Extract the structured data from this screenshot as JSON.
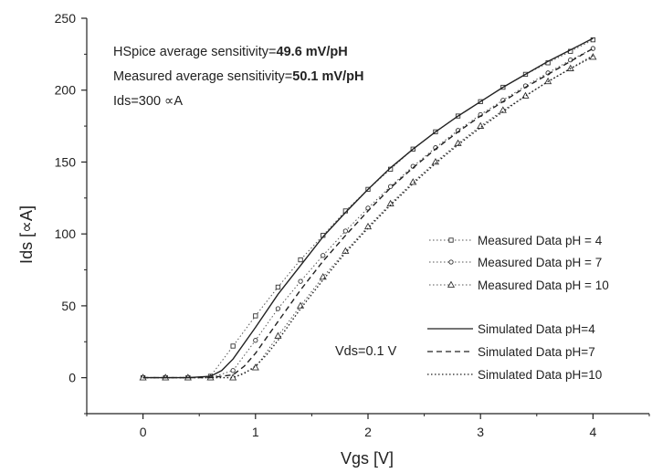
{
  "chart_data": {
    "type": "line",
    "xlabel": "Vgs [V]",
    "ylabel": "Ids [∝A]",
    "xlim": [
      -0.5,
      4.5
    ],
    "ylim": [
      -25,
      250
    ],
    "x_ticks": [
      0,
      1,
      2,
      3,
      4
    ],
    "y_ticks": [
      0,
      50,
      100,
      150,
      200,
      250
    ],
    "grid": false,
    "legend_position": "right",
    "annotations": {
      "hspice_label": "HSpice average sensitivity=",
      "hspice_value": "49.6 mV/pH",
      "measured_label": "Measured average sensitivity=",
      "measured_value": "50.1 mV/pH",
      "ids_note": "Ids=300 ∝A",
      "vds_note": "Vds=0.1 V"
    },
    "series": [
      {
        "name": "Measured Data pH = 4",
        "kind": "measured",
        "marker": "square",
        "dash": "dotted",
        "x": [
          0,
          0.2,
          0.4,
          0.6,
          0.8,
          1.0,
          1.2,
          1.4,
          1.6,
          1.8,
          2.0,
          2.2,
          2.4,
          2.6,
          2.8,
          3.0,
          3.2,
          3.4,
          3.6,
          3.8,
          4.0
        ],
        "y": [
          0,
          0,
          0,
          1,
          22,
          43,
          63,
          82,
          99,
          116,
          131,
          145,
          159,
          171,
          182,
          192,
          202,
          211,
          219,
          227,
          235
        ]
      },
      {
        "name": "Measured Data pH = 7",
        "kind": "measured",
        "marker": "circle",
        "dash": "dotted",
        "x": [
          0,
          0.2,
          0.4,
          0.6,
          0.8,
          1.0,
          1.2,
          1.4,
          1.6,
          1.8,
          2.0,
          2.2,
          2.4,
          2.6,
          2.8,
          3.0,
          3.2,
          3.4,
          3.6,
          3.8,
          4.0
        ],
        "y": [
          0,
          0,
          0,
          0,
          5,
          26,
          48,
          67,
          85,
          102,
          118,
          133,
          147,
          160,
          172,
          183,
          193,
          203,
          212,
          221,
          229
        ]
      },
      {
        "name": "Measured Data pH = 10",
        "kind": "measured",
        "marker": "triangle",
        "dash": "dotted",
        "x": [
          0,
          0.2,
          0.4,
          0.6,
          0.8,
          1.0,
          1.2,
          1.4,
          1.6,
          1.8,
          2.0,
          2.2,
          2.4,
          2.6,
          2.8,
          3.0,
          3.2,
          3.4,
          3.6,
          3.8,
          4.0
        ],
        "y": [
          0,
          0,
          0,
          0,
          0,
          7,
          29,
          50,
          70,
          88,
          105,
          121,
          136,
          150,
          163,
          175,
          186,
          196,
          206,
          215,
          223
        ]
      },
      {
        "name": "Simulated Data pH=4",
        "kind": "simulated",
        "marker": "none",
        "dash": "solid",
        "x": [
          0,
          0.2,
          0.4,
          0.6,
          0.7,
          0.8,
          1.0,
          1.2,
          1.4,
          1.6,
          1.8,
          2.0,
          2.2,
          2.4,
          2.6,
          2.8,
          3.0,
          3.2,
          3.4,
          3.6,
          3.8,
          4.0
        ],
        "y": [
          0,
          0,
          0,
          1,
          5,
          13,
          35,
          58,
          78,
          98,
          115,
          131,
          146,
          159,
          171,
          182,
          192,
          202,
          211,
          220,
          228,
          236
        ]
      },
      {
        "name": "Simulated Data pH=7",
        "kind": "simulated",
        "marker": "none",
        "dash": "dashed",
        "x": [
          0,
          0.2,
          0.4,
          0.6,
          0.8,
          0.9,
          1.0,
          1.2,
          1.4,
          1.6,
          1.8,
          2.0,
          2.2,
          2.4,
          2.6,
          2.8,
          3.0,
          3.2,
          3.4,
          3.6,
          3.8,
          4.0
        ],
        "y": [
          0,
          0,
          0,
          0,
          2,
          8,
          17,
          39,
          61,
          81,
          99,
          116,
          132,
          146,
          159,
          171,
          182,
          192,
          202,
          211,
          220,
          229
        ]
      },
      {
        "name": "Simulated Data pH=10",
        "kind": "simulated",
        "marker": "none",
        "dash": "dotted",
        "x": [
          0,
          0.2,
          0.4,
          0.6,
          0.8,
          0.9,
          1.0,
          1.1,
          1.2,
          1.4,
          1.6,
          1.8,
          2.0,
          2.2,
          2.4,
          2.6,
          2.8,
          3.0,
          3.2,
          3.4,
          3.6,
          3.8,
          4.0
        ],
        "y": [
          0,
          0,
          0,
          0,
          0,
          3,
          8,
          16,
          26,
          48,
          68,
          87,
          104,
          120,
          135,
          149,
          162,
          174,
          185,
          196,
          206,
          215,
          224
        ]
      }
    ]
  }
}
